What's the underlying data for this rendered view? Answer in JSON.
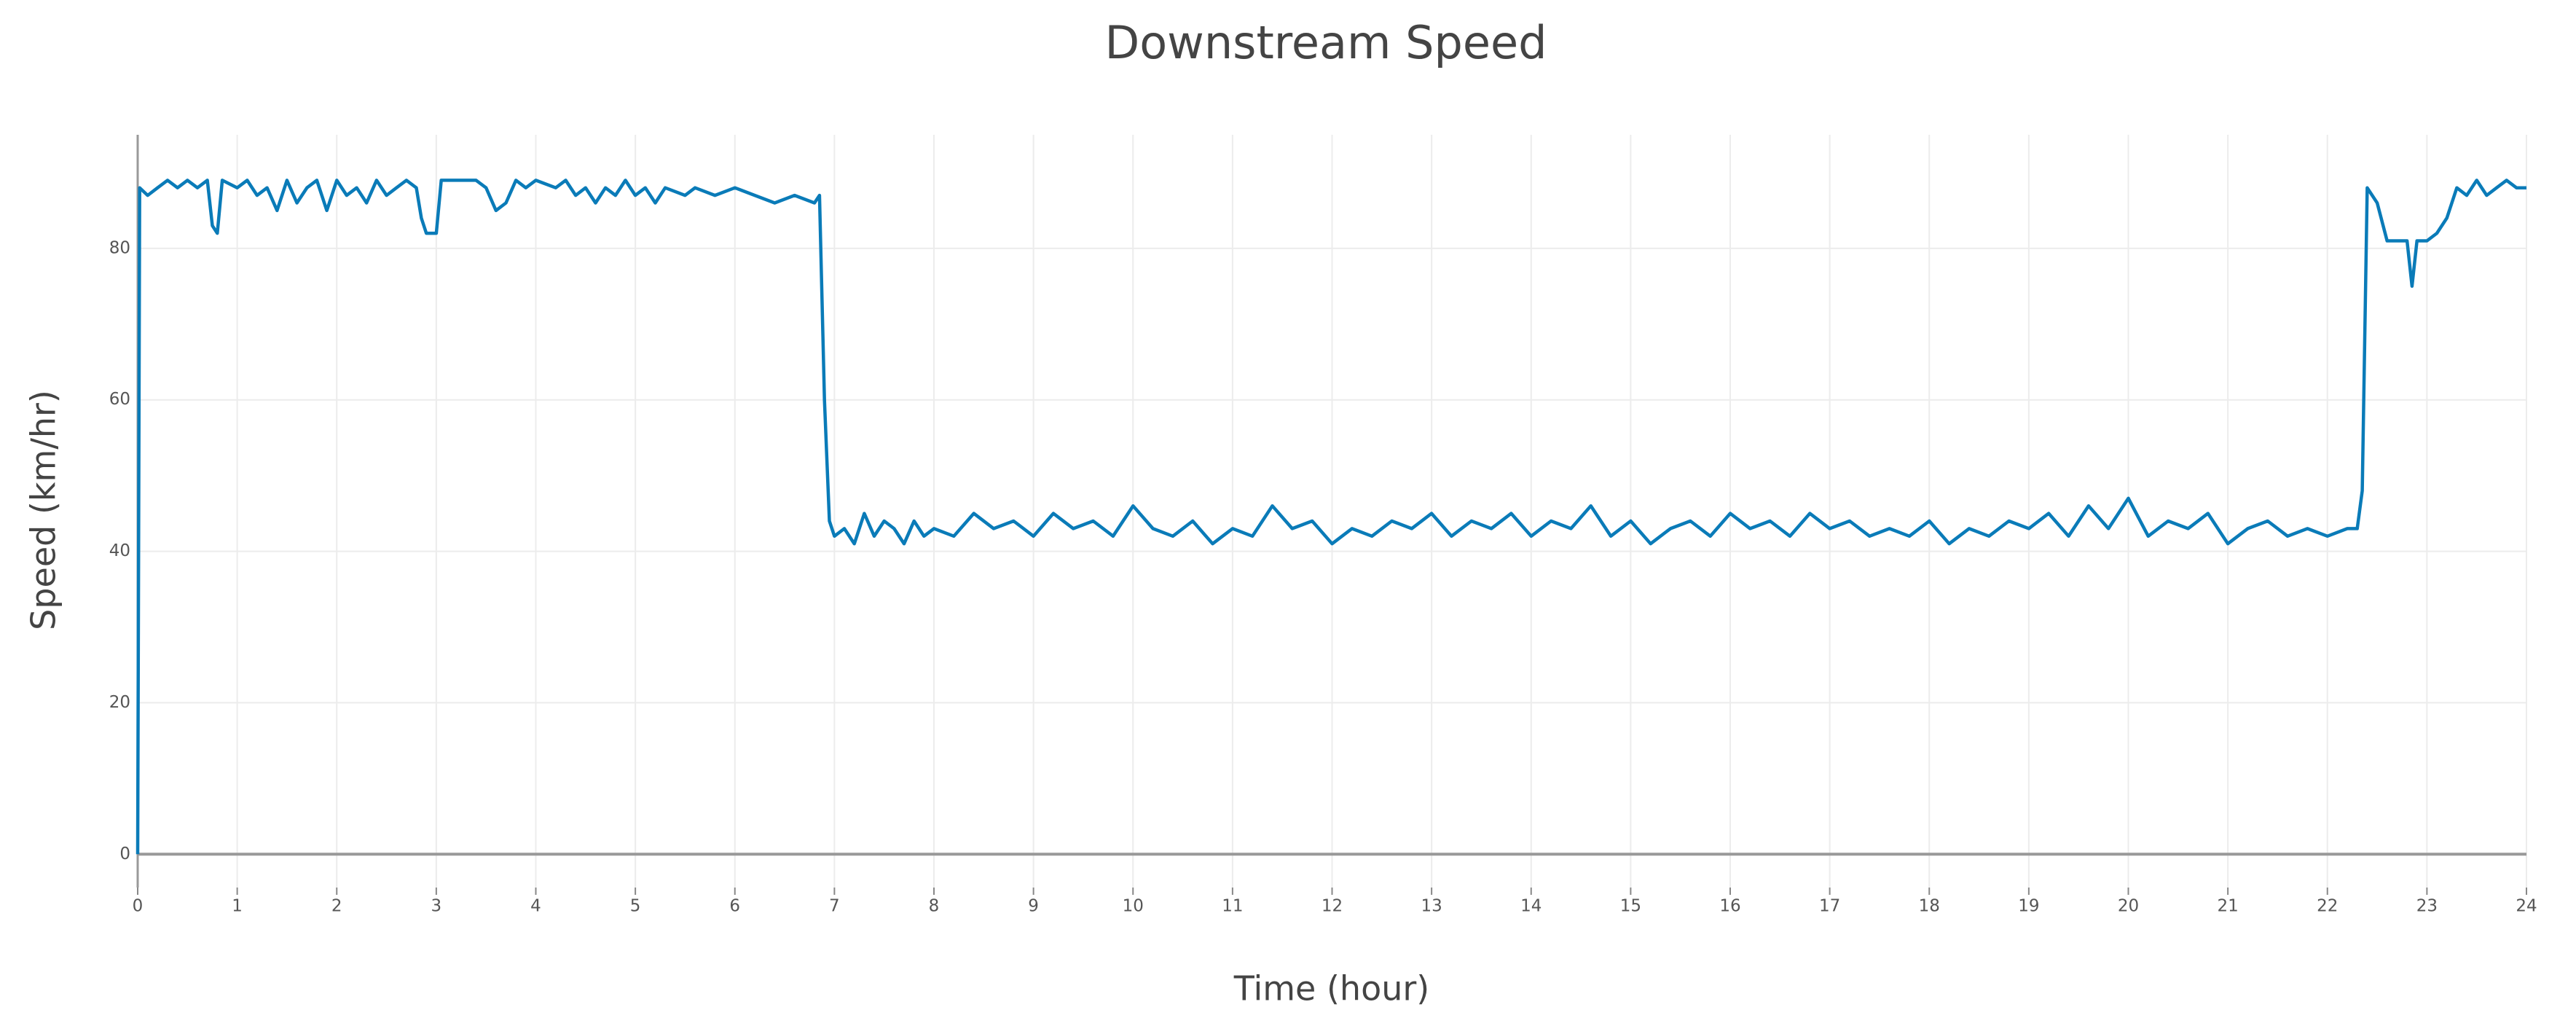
{
  "chart_data": {
    "type": "line",
    "title": "Downstream Speed",
    "x_label": "Time (hour)",
    "y_label": "Speed (km/hr)",
    "color": "#0a7bb8",
    "grid": true,
    "xlim": [
      0,
      24
    ],
    "xticks": [
      0,
      1,
      2,
      3,
      4,
      5,
      6,
      7,
      8,
      9,
      10,
      11,
      12,
      13,
      14,
      15,
      16,
      17,
      18,
      19,
      20,
      21,
      22,
      23,
      24
    ],
    "ylim": [
      -4.4,
      95
    ],
    "yticks": [
      0,
      20,
      40,
      60,
      80
    ],
    "x": [
      0,
      0.02,
      0.1,
      0.2,
      0.3,
      0.4,
      0.5,
      0.6,
      0.7,
      0.75,
      0.8,
      0.85,
      1,
      1.1,
      1.2,
      1.3,
      1.4,
      1.5,
      1.6,
      1.7,
      1.8,
      1.9,
      2,
      2.1,
      2.2,
      2.3,
      2.4,
      2.5,
      2.6,
      2.7,
      2.8,
      2.85,
      2.9,
      3,
      3.05,
      3.2,
      3.4,
      3.5,
      3.6,
      3.7,
      3.8,
      3.9,
      4,
      4.2,
      4.3,
      4.4,
      4.5,
      4.6,
      4.7,
      4.8,
      4.9,
      5,
      5.1,
      5.2,
      5.3,
      5.5,
      5.6,
      5.8,
      6,
      6.2,
      6.4,
      6.6,
      6.8,
      6.85,
      6.9,
      6.95,
      7,
      7.1,
      7.2,
      7.3,
      7.4,
      7.5,
      7.6,
      7.7,
      7.8,
      7.9,
      8,
      8.2,
      8.4,
      8.6,
      8.8,
      9,
      9.2,
      9.4,
      9.6,
      9.8,
      10,
      10.2,
      10.4,
      10.6,
      10.8,
      11,
      11.2,
      11.4,
      11.6,
      11.8,
      12,
      12.2,
      12.4,
      12.6,
      12.8,
      13,
      13.2,
      13.4,
      13.6,
      13.8,
      14,
      14.2,
      14.4,
      14.6,
      14.8,
      15,
      15.2,
      15.4,
      15.6,
      15.8,
      16,
      16.2,
      16.4,
      16.6,
      16.8,
      17,
      17.2,
      17.4,
      17.6,
      17.8,
      18,
      18.2,
      18.4,
      18.6,
      18.8,
      19,
      19.2,
      19.4,
      19.6,
      19.8,
      20,
      20.2,
      20.4,
      20.6,
      20.8,
      21,
      21.2,
      21.4,
      21.6,
      21.8,
      22,
      22.2,
      22.3,
      22.35,
      22.4,
      22.5,
      22.6,
      22.8,
      22.85,
      22.9,
      23,
      23.1,
      23.2,
      23.3,
      23.4,
      23.5,
      23.6,
      23.7,
      23.8,
      23.9,
      24
    ],
    "values": [
      0,
      88,
      87,
      88,
      89,
      88,
      89,
      88,
      89,
      83,
      82,
      89,
      88,
      89,
      87,
      88,
      85,
      89,
      86,
      88,
      89,
      85,
      89,
      87,
      88,
      86,
      89,
      87,
      88,
      89,
      88,
      84,
      82,
      82,
      89,
      89,
      89,
      88,
      85,
      86,
      89,
      88,
      89,
      88,
      89,
      87,
      88,
      86,
      88,
      87,
      89,
      87,
      88,
      86,
      88,
      87,
      88,
      87,
      88,
      87,
      86,
      87,
      86,
      87,
      60,
      44,
      42,
      43,
      41,
      45,
      42,
      44,
      43,
      41,
      44,
      42,
      43,
      42,
      45,
      43,
      44,
      42,
      45,
      43,
      44,
      42,
      46,
      43,
      42,
      44,
      41,
      43,
      42,
      46,
      43,
      44,
      41,
      43,
      42,
      44,
      43,
      45,
      42,
      44,
      43,
      45,
      42,
      44,
      43,
      46,
      42,
      44,
      41,
      43,
      44,
      42,
      45,
      43,
      44,
      42,
      45,
      43,
      44,
      42,
      43,
      42,
      44,
      41,
      43,
      42,
      44,
      43,
      45,
      42,
      46,
      43,
      47,
      42,
      44,
      43,
      45,
      41,
      43,
      44,
      42,
      43,
      42,
      43,
      43,
      48,
      88,
      86,
      81,
      81,
      75,
      81,
      81,
      82,
      84,
      88,
      87,
      89,
      87,
      88,
      89,
      88,
      88
    ]
  }
}
